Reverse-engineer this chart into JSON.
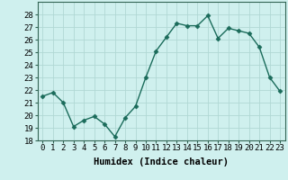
{
  "x": [
    0,
    1,
    2,
    3,
    4,
    5,
    6,
    7,
    8,
    9,
    10,
    11,
    12,
    13,
    14,
    15,
    16,
    17,
    18,
    19,
    20,
    21,
    22,
    23
  ],
  "y": [
    21.5,
    21.8,
    21.0,
    19.1,
    19.6,
    19.9,
    19.3,
    18.3,
    19.8,
    20.7,
    23.0,
    25.1,
    26.2,
    27.3,
    27.1,
    27.1,
    27.9,
    26.1,
    26.9,
    26.7,
    26.5,
    25.4,
    23.0,
    21.9
  ],
  "line_color": "#1a6b5a",
  "marker": "D",
  "marker_size": 2.5,
  "bg_color": "#cff0ee",
  "grid_color": "#b0d8d4",
  "xlabel": "Humidex (Indice chaleur)",
  "ylim": [
    18,
    29
  ],
  "yticks": [
    18,
    19,
    20,
    21,
    22,
    23,
    24,
    25,
    26,
    27,
    28
  ],
  "xticks": [
    0,
    1,
    2,
    3,
    4,
    5,
    6,
    7,
    8,
    9,
    10,
    11,
    12,
    13,
    14,
    15,
    16,
    17,
    18,
    19,
    20,
    21,
    22,
    23
  ],
  "xlabel_fontsize": 7.5,
  "tick_fontsize": 6.5,
  "line_width": 1.0
}
